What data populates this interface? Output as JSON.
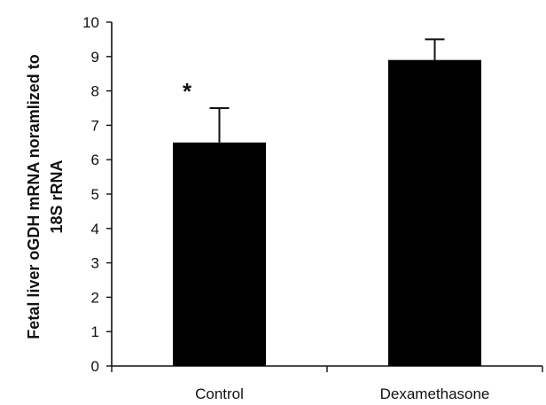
{
  "chart_data": {
    "type": "bar",
    "categories": [
      "Control",
      "Dexamethasone"
    ],
    "values": [
      6.5,
      8.9
    ],
    "error_upper": [
      7.5,
      9.5
    ],
    "annotations": [
      "*",
      ""
    ],
    "ylabel_lines": [
      "Fetal liver oGDH mRNA noramlized to",
      "18S rRNA"
    ],
    "xlabel": "",
    "title": "",
    "ylim": [
      0,
      10
    ],
    "yticks": [
      0,
      1,
      2,
      3,
      4,
      5,
      6,
      7,
      8,
      9,
      10
    ],
    "grid": false,
    "legend": "none",
    "bar_color": "#000000"
  }
}
